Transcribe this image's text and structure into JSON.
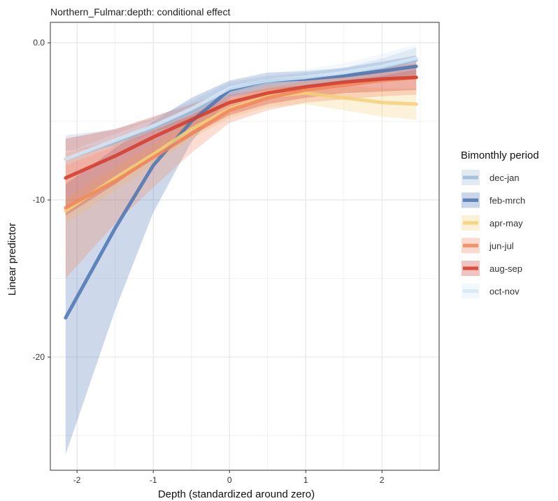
{
  "chart_data": {
    "type": "line",
    "title": "Northern_Fulmar:depth: conditional effect",
    "xlabel": "Depth (standardized around zero)",
    "ylabel": "Linear predictor",
    "xlim": [
      -2.35,
      2.75
    ],
    "ylim": [
      -27.2,
      1.3
    ],
    "x_ticks": [
      -2,
      -1,
      0,
      1,
      2
    ],
    "x_tick_labels": [
      "-2",
      "-1",
      "0",
      "1",
      "2"
    ],
    "y_ticks": [
      0,
      -10,
      -20
    ],
    "y_tick_labels": [
      "0.0",
      "-10",
      "-20"
    ],
    "grid": true,
    "legend_title": "Bimonthly period",
    "legend_position": "right",
    "series": [
      {
        "name": "dec-jan",
        "color": "#9bbad6",
        "x": [
          -2.15,
          -1.5,
          -1.0,
          -0.5,
          0.0,
          0.5,
          1.0,
          1.5,
          2.0,
          2.45
        ],
        "y": [
          -7.4,
          -6.3,
          -5.4,
          -4.4,
          -3.1,
          -2.5,
          -2.3,
          -2.0,
          -1.6,
          -1.1
        ],
        "lower": [
          -6.9,
          -6.6,
          -5.7,
          -4.9,
          -3.4,
          -2.9,
          -2.8,
          -2.6,
          -2.3,
          -2.0
        ],
        "upper": [
          -5.9,
          -5.5,
          -4.8,
          -3.7,
          -2.5,
          -2.1,
          -1.9,
          -1.6,
          -1.0,
          -0.3
        ]
      },
      {
        "name": "feb-mrch",
        "color": "#4b74b3",
        "x": [
          -2.15,
          -1.5,
          -1.0,
          -0.5,
          0.0,
          0.5,
          1.0,
          1.5,
          2.0,
          2.45
        ],
        "y": [
          -17.5,
          -11.8,
          -7.8,
          -5.0,
          -3.0,
          -2.4,
          -2.3,
          -2.1,
          -1.8,
          -1.5
        ],
        "lower": [
          -26.2,
          -17.0,
          -10.8,
          -6.3,
          -3.5,
          -3.0,
          -2.8,
          -2.6,
          -2.4,
          -2.2
        ],
        "upper": [
          -9.0,
          -6.7,
          -5.0,
          -3.5,
          -2.4,
          -1.9,
          -1.8,
          -1.6,
          -1.2,
          -0.8
        ]
      },
      {
        "name": "apr-may",
        "color": "#f3d078",
        "x": [
          -2.15,
          -1.5,
          -1.0,
          -0.5,
          0.0,
          0.5,
          1.0,
          1.5,
          2.0,
          2.45
        ],
        "y": [
          -10.7,
          -8.6,
          -7.1,
          -5.5,
          -4.2,
          -3.4,
          -3.2,
          -3.5,
          -3.8,
          -3.9
        ],
        "lower": [
          -11.5,
          -9.4,
          -7.8,
          -6.1,
          -4.8,
          -4.1,
          -3.9,
          -4.3,
          -4.7,
          -4.9
        ],
        "upper": [
          -9.9,
          -7.9,
          -6.5,
          -4.9,
          -3.6,
          -2.8,
          -2.6,
          -2.7,
          -2.9,
          -2.9
        ]
      },
      {
        "name": "jun-jul",
        "color": "#f0865c",
        "x": [
          -2.15,
          -1.5,
          -1.0,
          -0.5,
          0.0,
          0.5,
          1.0,
          1.5,
          2.0,
          2.45
        ],
        "y": [
          -10.5,
          -8.8,
          -7.3,
          -5.8,
          -4.3,
          -3.5,
          -3.0,
          -2.7,
          -2.4,
          -2.2
        ],
        "lower": [
          -15.0,
          -11.5,
          -9.2,
          -7.0,
          -5.1,
          -4.3,
          -3.8,
          -3.6,
          -3.4,
          -3.3
        ],
        "upper": [
          -7.0,
          -6.2,
          -5.5,
          -4.6,
          -3.5,
          -2.9,
          -2.4,
          -2.0,
          -1.6,
          -1.2
        ]
      },
      {
        "name": "aug-sep",
        "color": "#d33b2c",
        "x": [
          -2.15,
          -1.5,
          -1.0,
          -0.5,
          0.0,
          0.5,
          1.0,
          1.5,
          2.0,
          2.45
        ],
        "y": [
          -8.6,
          -7.2,
          -6.0,
          -4.9,
          -3.8,
          -3.2,
          -2.8,
          -2.5,
          -2.3,
          -2.2
        ],
        "lower": [
          -11.0,
          -9.0,
          -7.3,
          -5.9,
          -4.6,
          -3.9,
          -3.5,
          -3.2,
          -3.1,
          -3.0
        ],
        "upper": [
          -6.1,
          -5.5,
          -4.7,
          -3.9,
          -3.0,
          -2.5,
          -2.2,
          -1.9,
          -1.6,
          -1.3
        ]
      },
      {
        "name": "oct-nov",
        "color": "#d4e7f4",
        "x": [
          -2.15,
          -1.5,
          -1.0,
          -0.5,
          0.0,
          0.5,
          1.0,
          1.5,
          2.0,
          2.45
        ],
        "y": [
          -7.4,
          -6.2,
          -5.3,
          -4.2,
          -2.9,
          -2.4,
          -2.2,
          -1.9,
          -1.5,
          -1.0
        ],
        "lower": [
          -7.8,
          -6.6,
          -5.6,
          -4.6,
          -3.3,
          -2.9,
          -2.7,
          -2.4,
          -2.1,
          -1.7
        ],
        "upper": [
          -7.0,
          -5.8,
          -4.9,
          -3.7,
          -2.4,
          -1.9,
          -1.7,
          -1.3,
          -0.7,
          -0.1
        ]
      }
    ]
  }
}
